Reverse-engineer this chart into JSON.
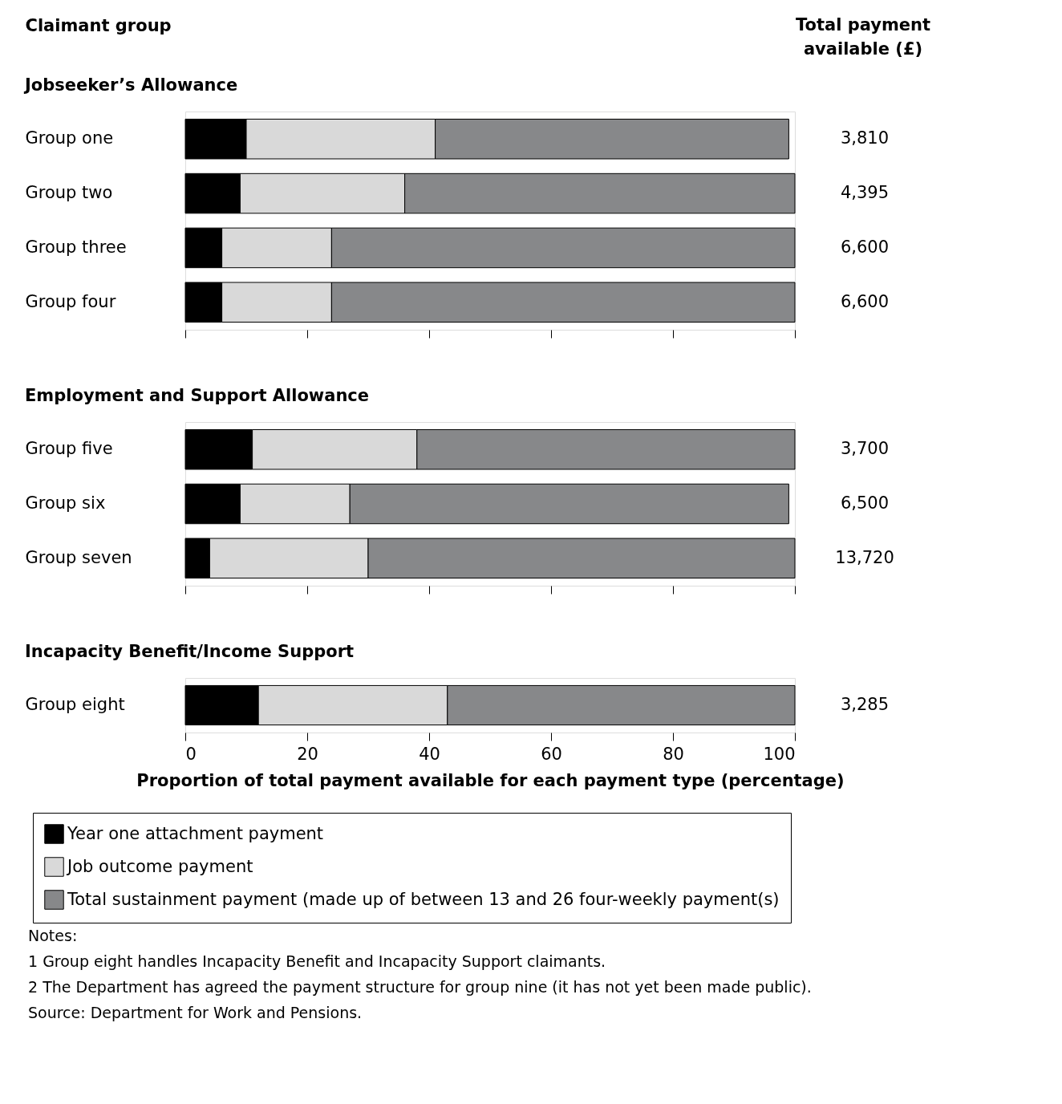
{
  "chart_data": [
    {
      "type": "bar",
      "orientation": "horizontal",
      "stacked": true,
      "title": "Jobseeker’s Allowance",
      "ylabel": "Claimant group",
      "y2label": "Total payment available (£)",
      "categories": [
        "Group one",
        "Group two",
        "Group three",
        "Group four"
      ],
      "series": [
        {
          "color": "#000000",
          "values": [
            10,
            9,
            6,
            6
          ]
        },
        {
          "color": "#d9d9d9",
          "values": [
            31,
            27,
            18,
            18
          ]
        },
        {
          "color": "#87888a",
          "values": [
            58,
            64,
            76,
            76
          ]
        }
      ],
      "xlim": [
        0,
        100
      ],
      "xticks": [
        0,
        20,
        40,
        60,
        80,
        100
      ],
      "tick_labels": "y",
      "grid": false,
      "legend": false,
      "annotations": [
        "3,810",
        "4,395",
        "6,600",
        "6,600"
      ]
    },
    {
      "type": "bar",
      "orientation": "horizontal",
      "stacked": true,
      "title": "Employment and Support Allowance",
      "categories": [
        "Group five",
        "Group six",
        "Group seven"
      ],
      "series": [
        {
          "color": "#000000",
          "values": [
            11,
            9,
            4
          ]
        },
        {
          "color": "#d9d9d9",
          "values": [
            27,
            18,
            26
          ]
        },
        {
          "color": "#87888a",
          "values": [
            62,
            72,
            70
          ]
        }
      ],
      "xlim": [
        0,
        100
      ],
      "xticks": [
        0,
        20,
        40,
        60,
        80,
        100
      ],
      "tick_labels": "y",
      "grid": false,
      "legend": false,
      "annotations": [
        "3,700",
        "6,500",
        "13,720"
      ]
    },
    {
      "type": "bar",
      "orientation": "horizontal",
      "stacked": true,
      "title": "Incapacity Benefit/Income Support",
      "xlabel": "Proportion of total payment available for each payment type (percentage)",
      "categories": [
        "Group eight"
      ],
      "series": [
        {
          "name": "Year one attachment payment",
          "color": "#000000",
          "values": [
            12
          ]
        },
        {
          "name": "Job outcome payment",
          "color": "#d9d9d9",
          "values": [
            31
          ]
        },
        {
          "name": "Total sustainment payment (made up of between 13 and 26 four-weekly payment(s)",
          "color": "#87888a",
          "values": [
            57
          ]
        }
      ],
      "xlim": [
        0,
        100
      ],
      "xticks": [
        0,
        20,
        40,
        60,
        80,
        100
      ],
      "grid": false,
      "legend": "bottom",
      "annotations": [
        "3,285",
        "Notes:",
        "1 Group eight handles Incapacity Benefit and Incapacity Support claimants.",
        "2 The Department has agreed the payment structure for group nine (it has not yet been made public).",
        "Source: Department for Work and Pensions."
      ]
    }
  ]
}
